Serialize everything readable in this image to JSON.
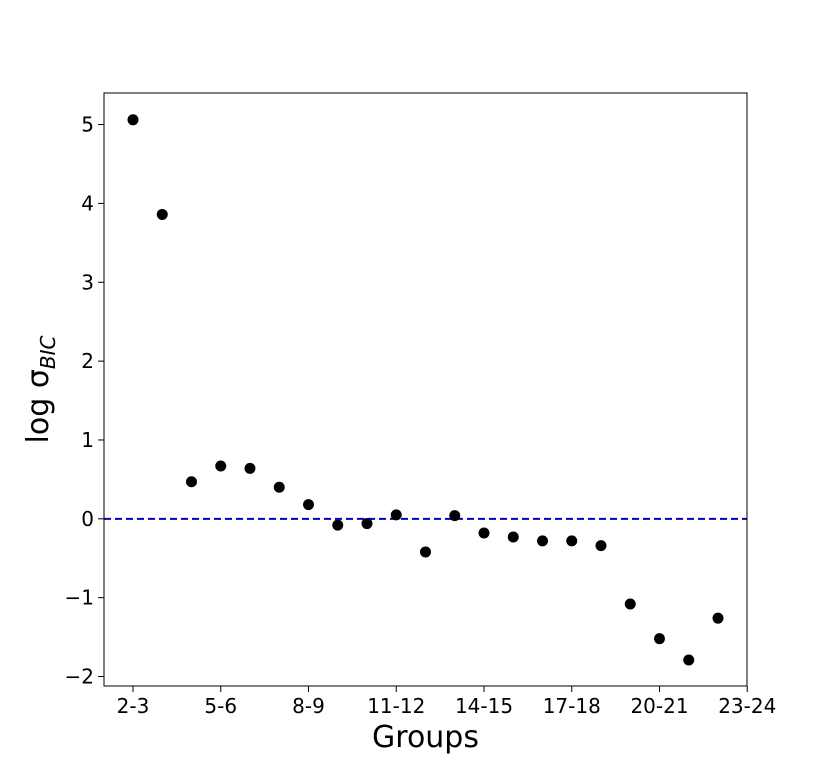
{
  "chart_data": {
    "type": "scatter",
    "title": "",
    "xlabel": "Groups",
    "ylabel_main": "log σ",
    "ylabel_sub": "BIC",
    "x": [
      "2-3",
      "3-4",
      "4-5",
      "5-6",
      "6-7",
      "7-8",
      "8-9",
      "9-10",
      "10-11",
      "11-12",
      "12-13",
      "13-14",
      "14-15",
      "15-16",
      "16-17",
      "17-18",
      "18-19",
      "19-20",
      "20-21",
      "21-22",
      "22-23",
      "23-24"
    ],
    "series": [
      {
        "values": [
          5.06,
          3.86,
          0.47,
          0.67,
          0.64,
          0.4,
          0.18,
          -0.08,
          -0.06,
          0.05,
          -0.42,
          0.04,
          -0.18,
          -0.23,
          -0.28,
          -0.28,
          -0.34,
          -1.08,
          -1.52,
          -1.79,
          -1.26,
          null
        ]
      }
    ],
    "x_tick_labels": [
      "2-3",
      "5-6",
      "8-9",
      "11-12",
      "14-15",
      "17-18",
      "20-21",
      "23-24"
    ],
    "y_ticks": [
      -2,
      -1,
      0,
      1,
      2,
      3,
      4,
      5
    ],
    "y_tick_labels": [
      "−2",
      "−1",
      "0",
      "1",
      "2",
      "3",
      "4",
      "5"
    ],
    "ylim": [
      -2.12,
      5.4
    ],
    "reference_line": {
      "y": 0,
      "style": "dashed",
      "color": "#0000cc"
    },
    "marker_color": "#000000",
    "grid": false,
    "legend": false
  }
}
